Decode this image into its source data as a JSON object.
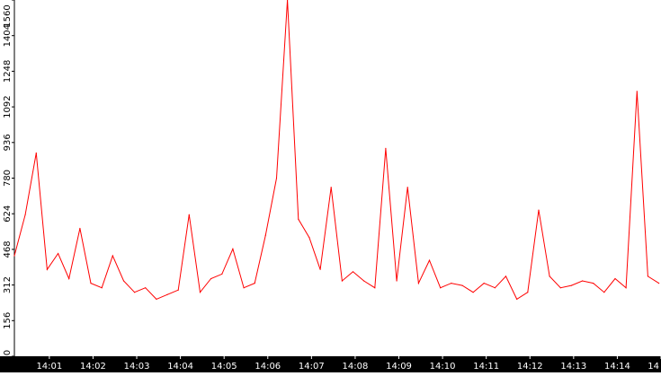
{
  "colors": {
    "line": "#ff0000",
    "axis": "#000000",
    "bar": "#000000",
    "xtick_text": "#ffffff",
    "ytick_text": "#000000",
    "bg": "#ffffff"
  },
  "chart_data": {
    "type": "line",
    "title": "",
    "xlabel": "",
    "ylabel": "",
    "grid": false,
    "ylim": [
      0,
      1560
    ],
    "xlim": [
      "14:00:12",
      "14:15:00"
    ],
    "y_ticks": [
      "0",
      "156",
      "312",
      "468",
      "624",
      "780",
      "936",
      "1092",
      "1248",
      "1404",
      "1560"
    ],
    "x_ticks": [
      "14:01",
      "14:02",
      "14:03",
      "14:04",
      "14:05",
      "14:06",
      "14:07",
      "14:08",
      "14:09",
      "14:10",
      "14:11",
      "14:12",
      "14:13",
      "14:14",
      "14"
    ],
    "series": [
      {
        "x": [
          "14:00:12",
          "14:00:27",
          "14:00:42",
          "14:00:57",
          "14:01:12",
          "14:01:27",
          "14:01:42",
          "14:01:57",
          "14:02:12",
          "14:02:27",
          "14:02:42",
          "14:02:57",
          "14:03:12",
          "14:03:27",
          "14:03:42",
          "14:03:57",
          "14:04:12",
          "14:04:27",
          "14:04:42",
          "14:04:57",
          "14:05:12",
          "14:05:27",
          "14:05:42",
          "14:05:57",
          "14:06:12",
          "14:06:27",
          "14:06:42",
          "14:06:57",
          "14:07:12",
          "14:07:27",
          "14:07:42",
          "14:07:57",
          "14:08:12",
          "14:08:27",
          "14:08:42",
          "14:08:57",
          "14:09:12",
          "14:09:27",
          "14:09:42",
          "14:09:57",
          "14:10:12",
          "14:10:27",
          "14:10:42",
          "14:10:57",
          "14:11:12",
          "14:11:27",
          "14:11:42",
          "14:11:57",
          "14:12:12",
          "14:12:27",
          "14:12:42",
          "14:12:57",
          "14:13:12",
          "14:13:27",
          "14:13:42",
          "14:13:57",
          "14:14:12",
          "14:14:27",
          "14:14:42",
          "14:14:57"
        ],
        "values": [
          440,
          620,
          890,
          380,
          450,
          340,
          560,
          320,
          300,
          440,
          330,
          280,
          300,
          250,
          270,
          290,
          620,
          280,
          340,
          360,
          470,
          300,
          320,
          530,
          780,
          1560,
          600,
          520,
          380,
          740,
          330,
          370,
          330,
          300,
          910,
          330,
          740,
          320,
          420,
          300,
          320,
          310,
          280,
          320,
          300,
          350,
          250,
          280,
          640,
          350,
          300,
          310,
          330,
          320,
          280,
          340,
          300,
          1160,
          350,
          320
        ]
      }
    ]
  }
}
